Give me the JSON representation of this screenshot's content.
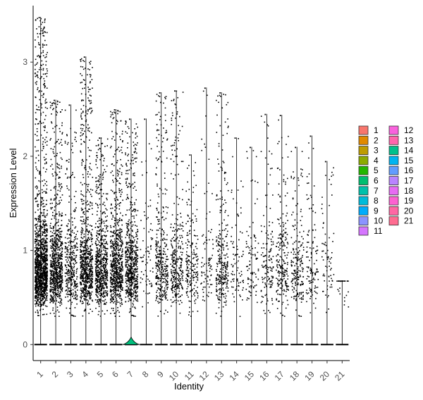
{
  "chart_data": {
    "type": "violin",
    "xlabel": "Identity",
    "ylabel": "Expression Level",
    "ylim": [
      -0.17,
      3.6
    ],
    "yticks": [
      0,
      1,
      2,
      3
    ],
    "categories": [
      "1",
      "2",
      "3",
      "4",
      "5",
      "6",
      "7",
      "8",
      "9",
      "10",
      "11",
      "12",
      "13",
      "14",
      "15",
      "16",
      "17",
      "18",
      "19",
      "20",
      "21"
    ],
    "colors": [
      "#F8766D",
      "#E58700",
      "#C99800",
      "#A3A500",
      "#6BB100",
      "#00BA38",
      "#00BF7D",
      "#00C0AF",
      "#00BCD8",
      "#00B0F6",
      "#619CFF",
      "#B983FF",
      "#E76BF3",
      "#FD61D1",
      "#FF67A4",
      "#00BA38",
      "#00C08B",
      "#00BFC4",
      "#00B4F0",
      "#C77CFF",
      "#FF6C91"
    ],
    "legend_colors": [
      "#F8766D",
      "#E18A00",
      "#BE9C00",
      "#8CAB00",
      "#24B700",
      "#00BE70",
      "#00C1AB",
      "#00BBDA",
      "#00ACFC",
      "#8B93FF",
      "#D575FE",
      "#F962DD",
      "#FF65AC",
      "#00C08B",
      "#00B4F0",
      "#619CFF",
      "#B983FF",
      "#E76BF3",
      "#FD61D1",
      "#FF67A4",
      "#FF6C91"
    ],
    "max_values": [
      3.48,
      2.6,
      2.55,
      3.06,
      2.2,
      2.5,
      2.4,
      2.4,
      2.68,
      2.7,
      2.02,
      2.73,
      2.68,
      2.2,
      2.1,
      2.45,
      2.44,
      2.1,
      2.22,
      1.95,
      0.68
    ],
    "point_density": [
      1.0,
      0.55,
      0.25,
      0.55,
      0.45,
      0.5,
      0.45,
      0.05,
      0.25,
      0.22,
      0.14,
      0.06,
      0.2,
      0.06,
      0.06,
      0.1,
      0.16,
      0.14,
      0.08,
      0.05,
      0.02
    ],
    "legend": {
      "position": "right",
      "columns": [
        [
          "1",
          "2",
          "3",
          "4",
          "5",
          "6",
          "7",
          "8",
          "9",
          "10",
          "11"
        ],
        [
          "12",
          "13",
          "14",
          "15",
          "16",
          "17",
          "18",
          "19",
          "20",
          "21"
        ]
      ]
    }
  }
}
